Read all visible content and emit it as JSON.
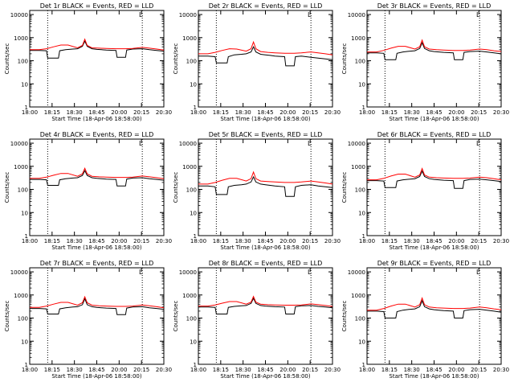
{
  "chart_data": {
    "type": "line",
    "layout": "3x3 grid of panels",
    "x_tick_labels": [
      "18:00",
      "18:15",
      "18:30",
      "18:45",
      "20:00",
      "20:15",
      "20:30"
    ],
    "x_time_axis_note": "tick labels printed as shown on the original (18:00, 18:15, 18:30, 18:45, 20:00, 20:15, 20:30)",
    "y_scale": "log",
    "ylim": [
      1,
      15000
    ],
    "y_tick_labels": [
      "1",
      "10",
      "100",
      "1000",
      "10000"
    ],
    "y_ticks": [
      1,
      10,
      100,
      1000,
      10000
    ],
    "ylabel": "Counts/sec",
    "xlabel": "Start Time (18-Apr-06 18:58:00)",
    "vertical_dotted_lines_at_minutes": [
      15,
      94
    ],
    "x_range_minutes": [
      0,
      112
    ],
    "corner_marker": "L",
    "colors": {
      "events": "#000000",
      "lld": "#ff0000"
    },
    "panels": [
      {
        "title": "Det 1r BLACK = Events, RED = LLD",
        "series": [
          {
            "name": "BLACK = Events",
            "x": [
              0,
              8,
              14,
              15,
              24,
              25,
              30,
              36,
              40,
              44,
              46,
              48,
              52,
              56,
              60,
              64,
              72,
              73,
              80,
              81,
              86,
              94,
              100,
              106,
              112
            ],
            "y": [
              280,
              280,
              270,
              130,
              130,
              270,
              300,
              320,
              330,
              420,
              700,
              420,
              330,
              310,
              300,
              290,
              280,
              140,
              140,
              290,
              320,
              330,
              300,
              280,
              260
            ]
          },
          {
            "name": "RED = LLD",
            "x": [
              0,
              8,
              14,
              20,
              26,
              32,
              40,
              44,
              46,
              48,
              52,
              58,
              64,
              72,
              80,
              86,
              94,
              100,
              106,
              112
            ],
            "y": [
              300,
              300,
              330,
              400,
              480,
              480,
              360,
              460,
              850,
              460,
              360,
              350,
              340,
              330,
              330,
              340,
              380,
              350,
              320,
              290
            ]
          }
        ]
      },
      {
        "title": "Det 2r BLACK = Events, RED = LLD",
        "series": [
          {
            "name": "BLACK = Events",
            "x": [
              0,
              8,
              14,
              15,
              24,
              25,
              30,
              36,
              40,
              44,
              46,
              48,
              52,
              56,
              60,
              64,
              72,
              73,
              80,
              81,
              86,
              94,
              100,
              106,
              112
            ],
            "y": [
              160,
              160,
              150,
              80,
              80,
              150,
              180,
              190,
              200,
              240,
              400,
              240,
              190,
              180,
              170,
              160,
              150,
              60,
              60,
              150,
              160,
              140,
              130,
              120,
              110
            ]
          },
          {
            "name": "RED = LLD",
            "x": [
              0,
              8,
              14,
              20,
              26,
              32,
              40,
              44,
              46,
              48,
              52,
              58,
              64,
              72,
              80,
              86,
              94,
              100,
              106,
              112
            ],
            "y": [
              200,
              200,
              230,
              280,
              330,
              320,
              260,
              330,
              650,
              330,
              250,
              230,
              220,
              210,
              210,
              220,
              240,
              220,
              200,
              180
            ]
          }
        ]
      },
      {
        "title": "Det 3r BLACK = Events, RED = LLD",
        "series": [
          {
            "name": "BLACK = Events",
            "x": [
              0,
              8,
              14,
              15,
              24,
              25,
              30,
              36,
              40,
              44,
              46,
              48,
              52,
              56,
              60,
              64,
              72,
              73,
              80,
              81,
              86,
              94,
              100,
              106,
              112
            ],
            "y": [
              220,
              220,
              210,
              110,
              110,
              210,
              240,
              260,
              270,
              340,
              600,
              340,
              270,
              250,
              240,
              230,
              220,
              110,
              110,
              230,
              250,
              260,
              240,
              220,
              200
            ]
          },
          {
            "name": "RED = LLD",
            "x": [
              0,
              8,
              14,
              20,
              26,
              32,
              40,
              44,
              46,
              48,
              52,
              58,
              64,
              72,
              80,
              86,
              94,
              100,
              106,
              112
            ],
            "y": [
              240,
              240,
              280,
              350,
              420,
              420,
              320,
              400,
              780,
              400,
              320,
              300,
              290,
              280,
              280,
              290,
              320,
              300,
              270,
              250
            ]
          }
        ]
      },
      {
        "title": "Det 4r BLACK = Events, RED = LLD",
        "series": [
          {
            "name": "BLACK = Events",
            "x": [
              0,
              8,
              14,
              15,
              24,
              25,
              30,
              36,
              40,
              44,
              46,
              48,
              52,
              56,
              60,
              64,
              72,
              73,
              80,
              81,
              86,
              94,
              100,
              106,
              112
            ],
            "y": [
              270,
              270,
              260,
              150,
              150,
              260,
              290,
              310,
              320,
              400,
              650,
              400,
              320,
              300,
              290,
              280,
              270,
              140,
              140,
              280,
              310,
              320,
              290,
              270,
              250
            ]
          },
          {
            "name": "RED = LLD",
            "x": [
              0,
              8,
              14,
              20,
              26,
              32,
              40,
              44,
              46,
              48,
              52,
              58,
              64,
              72,
              80,
              86,
              94,
              100,
              106,
              112
            ],
            "y": [
              300,
              300,
              340,
              410,
              490,
              490,
              370,
              470,
              820,
              470,
              370,
              350,
              340,
              330,
              330,
              340,
              380,
              350,
              320,
              290
            ]
          }
        ]
      },
      {
        "title": "Det 5r BLACK = Events, RED = LLD",
        "series": [
          {
            "name": "BLACK = Events",
            "x": [
              0,
              8,
              14,
              15,
              24,
              25,
              30,
              36,
              40,
              44,
              46,
              48,
              52,
              56,
              60,
              64,
              72,
              73,
              80,
              81,
              86,
              94,
              100,
              106,
              112
            ],
            "y": [
              140,
              140,
              130,
              60,
              60,
              130,
              150,
              160,
              170,
              210,
              350,
              210,
              170,
              160,
              150,
              140,
              130,
              50,
              50,
              130,
              150,
              160,
              140,
              130,
              120
            ]
          },
          {
            "name": "RED = LLD",
            "x": [
              0,
              8,
              14,
              20,
              26,
              32,
              40,
              44,
              46,
              48,
              52,
              58,
              64,
              72,
              80,
              86,
              94,
              100,
              106,
              112
            ],
            "y": [
              170,
              170,
              200,
              250,
              300,
              300,
              230,
              290,
              560,
              290,
              230,
              220,
              210,
              200,
              200,
              210,
              230,
              210,
              190,
              170
            ]
          }
        ]
      },
      {
        "title": "Det 6r BLACK = Events, RED = LLD",
        "series": [
          {
            "name": "BLACK = Events",
            "x": [
              0,
              8,
              14,
              15,
              24,
              25,
              30,
              36,
              40,
              44,
              46,
              48,
              52,
              56,
              60,
              64,
              72,
              73,
              80,
              81,
              86,
              94,
              100,
              106,
              112
            ],
            "y": [
              240,
              240,
              230,
              120,
              120,
              230,
              260,
              280,
              290,
              360,
              620,
              360,
              290,
              270,
              260,
              250,
              240,
              110,
              110,
              240,
              270,
              280,
              260,
              240,
              220
            ]
          },
          {
            "name": "RED = LLD",
            "x": [
              0,
              8,
              14,
              20,
              26,
              32,
              40,
              44,
              46,
              48,
              52,
              58,
              64,
              72,
              80,
              86,
              94,
              100,
              106,
              112
            ],
            "y": [
              260,
              260,
              300,
              380,
              460,
              460,
              340,
              420,
              800,
              420,
              340,
              320,
              310,
              300,
              300,
              310,
              340,
              320,
              290,
              260
            ]
          }
        ]
      },
      {
        "title": "Det 7r BLACK = Events, RED = LLD",
        "series": [
          {
            "name": "BLACK = Events",
            "x": [
              0,
              8,
              14,
              15,
              24,
              25,
              30,
              36,
              40,
              44,
              46,
              48,
              52,
              56,
              60,
              64,
              72,
              73,
              80,
              81,
              86,
              94,
              100,
              106,
              112
            ],
            "y": [
              260,
              260,
              250,
              150,
              150,
              250,
              280,
              300,
              310,
              380,
              680,
              380,
              310,
              290,
              280,
              270,
              260,
              140,
              140,
              270,
              300,
              310,
              280,
              260,
              240
            ]
          },
          {
            "name": "RED = LLD",
            "x": [
              0,
              8,
              14,
              20,
              26,
              32,
              40,
              44,
              46,
              48,
              52,
              58,
              64,
              72,
              80,
              86,
              94,
              100,
              106,
              112
            ],
            "y": [
              290,
              290,
              330,
              400,
              480,
              480,
              360,
              460,
              830,
              460,
              360,
              340,
              330,
              320,
              320,
              330,
              370,
              340,
              310,
              280
            ]
          }
        ]
      },
      {
        "title": "Det 8r BLACK = Events, RED = LLD",
        "series": [
          {
            "name": "BLACK = Events",
            "x": [
              0,
              8,
              14,
              15,
              24,
              25,
              30,
              36,
              40,
              44,
              46,
              48,
              52,
              56,
              60,
              64,
              72,
              73,
              80,
              81,
              86,
              94,
              100,
              106,
              112
            ],
            "y": [
              300,
              300,
              290,
              150,
              150,
              290,
              320,
              340,
              350,
              430,
              720,
              430,
              350,
              330,
              320,
              310,
              300,
              150,
              150,
              310,
              340,
              350,
              320,
              300,
              280
            ]
          },
          {
            "name": "RED = LLD",
            "x": [
              0,
              8,
              14,
              20,
              26,
              32,
              40,
              44,
              46,
              48,
              52,
              58,
              64,
              72,
              80,
              86,
              94,
              100,
              106,
              112
            ],
            "y": [
              330,
              330,
              370,
              440,
              520,
              520,
              400,
              490,
              860,
              490,
              400,
              380,
              370,
              360,
              360,
              370,
              410,
              380,
              350,
              320
            ]
          }
        ]
      },
      {
        "title": "Det 9r BLACK = Events, RED = LLD",
        "series": [
          {
            "name": "BLACK = Events",
            "x": [
              0,
              8,
              14,
              15,
              24,
              25,
              30,
              36,
              40,
              44,
              46,
              48,
              52,
              56,
              60,
              64,
              72,
              73,
              80,
              81,
              86,
              94,
              100,
              106,
              112
            ],
            "y": [
              200,
              200,
              190,
              100,
              100,
              190,
              220,
              240,
              250,
              310,
              560,
              310,
              250,
              230,
              220,
              210,
              200,
              100,
              100,
              210,
              230,
              240,
              220,
              200,
              180
            ]
          },
          {
            "name": "RED = LLD",
            "x": [
              0,
              8,
              14,
              20,
              26,
              32,
              40,
              44,
              46,
              48,
              52,
              58,
              64,
              72,
              80,
              86,
              94,
              100,
              106,
              112
            ],
            "y": [
              220,
              220,
              260,
              330,
              400,
              400,
              300,
              380,
              740,
              380,
              300,
              280,
              270,
              260,
              260,
              270,
              300,
              280,
              250,
              230
            ]
          }
        ]
      }
    ]
  }
}
